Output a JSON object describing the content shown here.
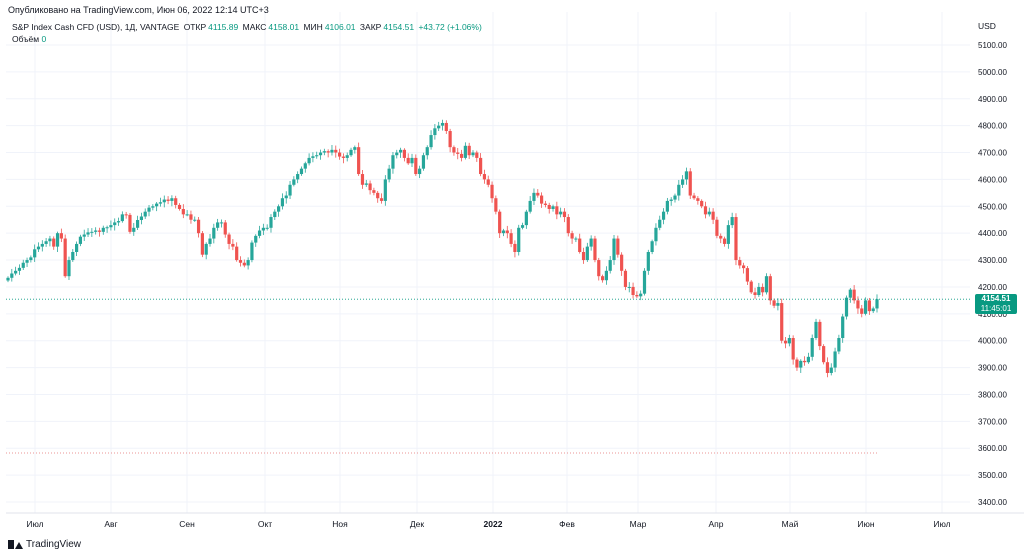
{
  "header": {
    "published": "Опубликовано на TradingView.com, Июн 06, 2022 12:14 UTC+3"
  },
  "legend": {
    "symbol": "S&P Index Cash CFD (USD), 1Д, VANTAGE",
    "open_label": "ОТКР",
    "open": "4115.89",
    "high_label": "МАКС",
    "high": "4158.01",
    "low_label": "МИН",
    "low": "4106.01",
    "close_label": "ЗАКР",
    "close": "4154.51",
    "change": "+43.72 (+1.06%)",
    "volume_label": "Объём",
    "volume": "0"
  },
  "price_tag": {
    "price": "4154.51",
    "countdown": "11:45:01"
  },
  "footer": {
    "brand": "TradingView"
  },
  "colors": {
    "up": "#26a69a",
    "down": "#ef5350",
    "grid": "#f0f3fa",
    "last": "#089981"
  },
  "chart_data": {
    "type": "candlestick",
    "currency": "USD",
    "y_ticks": [
      "5100.00",
      "5000.00",
      "4900.00",
      "4800.00",
      "4700.00",
      "4600.00",
      "4500.00",
      "4400.00",
      "4300.00",
      "4200.00",
      "4100.00",
      "4000.00",
      "3900.00",
      "3800.00",
      "3700.00",
      "3600.00",
      "3500.00",
      "3400.00"
    ],
    "ylim": [
      3375,
      5150
    ],
    "x_ticks": [
      "Июл",
      "Авг",
      "Сен",
      "Окт",
      "Ноя",
      "Дек",
      "2022",
      "Фев",
      "Мар",
      "Апр",
      "Май",
      "Июн",
      "Июл"
    ],
    "closes": [
      4234,
      4250,
      4260,
      4271,
      4290,
      4300,
      4310,
      4340,
      4350,
      4360,
      4370,
      4380,
      4350,
      4400,
      4380,
      4240,
      4300,
      4330,
      4360,
      4387,
      4395,
      4403,
      4405,
      4410,
      4405,
      4420,
      4422,
      4430,
      4440,
      4445,
      4470,
      4468,
      4405,
      4420,
      4449,
      4462,
      4480,
      4495,
      4500,
      4510,
      4515,
      4525,
      4520,
      4530,
      4505,
      4490,
      4470,
      4470,
      4450,
      4450,
      4400,
      4320,
      4360,
      4380,
      4420,
      4440,
      4440,
      4395,
      4360,
      4350,
      4300,
      4290,
      4280,
      4300,
      4365,
      4390,
      4410,
      4420,
      4420,
      4460,
      4480,
      4500,
      4530,
      4540,
      4580,
      4600,
      4620,
      4640,
      4660,
      4680,
      4686,
      4690,
      4700,
      4705,
      4700,
      4710,
      4700,
      4685,
      4680,
      4690,
      4710,
      4720,
      4620,
      4580,
      4585,
      4560,
      4550,
      4530,
      4520,
      4600,
      4640,
      4690,
      4700,
      4710,
      4680,
      4660,
      4680,
      4620,
      4640,
      4690,
      4720,
      4765,
      4790,
      4800,
      4810,
      4780,
      4720,
      4700,
      4695,
      4680,
      4725,
      4690,
      4700,
      4680,
      4620,
      4600,
      4580,
      4530,
      4480,
      4400,
      4410,
      4400,
      4360,
      4330,
      4420,
      4430,
      4480,
      4520,
      4550,
      4540,
      4510,
      4505,
      4490,
      4500,
      4470,
      4480,
      4460,
      4400,
      4380,
      4380,
      4330,
      4300,
      4350,
      4380,
      4300,
      4240,
      4225,
      4260,
      4300,
      4380,
      4320,
      4260,
      4200,
      4200,
      4170,
      4165,
      4175,
      4260,
      4330,
      4370,
      4420,
      4450,
      4480,
      4520,
      4525,
      4540,
      4580,
      4600,
      4630,
      4540,
      4530,
      4520,
      4500,
      4470,
      4480,
      4450,
      4390,
      4380,
      4360,
      4430,
      4460,
      4300,
      4280,
      4270,
      4220,
      4180,
      4170,
      4200,
      4180,
      4240,
      4150,
      4130,
      4140,
      4000,
      3990,
      4010,
      3930,
      3900,
      3925,
      3920,
      3940,
      4010,
      4070,
      3980,
      3920,
      3880,
      3900,
      3960,
      4010,
      4090,
      4160,
      4190,
      4150,
      4120,
      4100,
      4150,
      4110,
      4120,
      4154.51
    ]
  }
}
